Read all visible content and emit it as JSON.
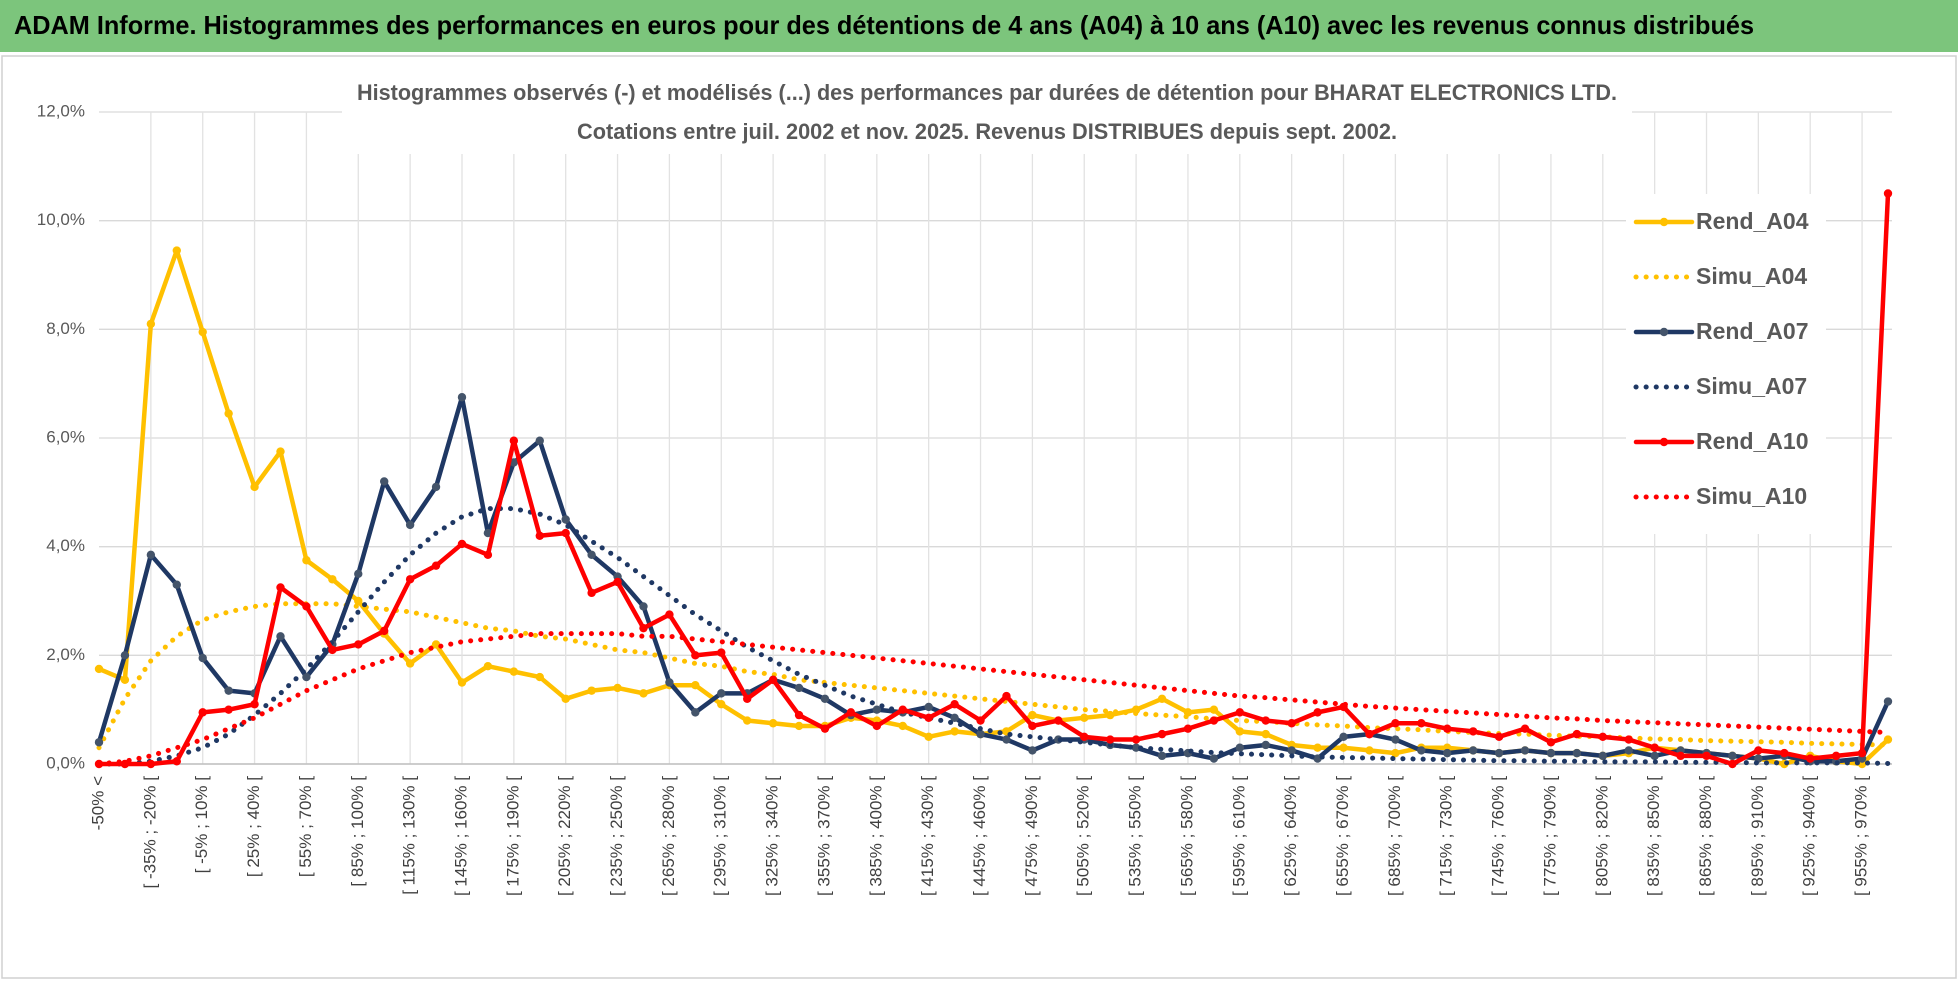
{
  "header": {
    "title": "ADAM Informe. Histogrammes des performances en euros pour des détentions de 4 ans (A04) à 10 ans (A10) avec les revenus connus distribués"
  },
  "chart_data": {
    "type": "line",
    "title": [
      "Histogrammes observés (-) et modélisés (...) des performances par durées de détention pour BHARAT ELECTRONICS LTD.",
      "Cotations entre juil. 2002 et nov. 2025. Revenus DISTRIBUES depuis sept. 2002."
    ],
    "categories": [
      "-50% <",
      null,
      "[ -35% ; -20% [",
      null,
      "[ -5% ; 10% [",
      null,
      "[ 25% ; 40% [",
      null,
      "[ 55% ; 70% [",
      null,
      "[ 85% ; 100% [",
      null,
      "[ 115% ; 130% [",
      null,
      "[ 145% ; 160% [",
      null,
      "[ 175% ; 190% [",
      null,
      "[ 205% ; 220% [",
      null,
      "[ 235% ; 250% [",
      null,
      "[ 265% ; 280% [",
      null,
      "[ 295% ; 310% [",
      null,
      "[ 325% ; 340% [",
      null,
      "[ 355% ; 370% [",
      null,
      "[ 385% ; 400% [",
      null,
      "[ 415% ; 430% [",
      null,
      "[ 445% ; 460% [",
      null,
      "[ 475% ; 490% [",
      null,
      "[ 505% ; 520% [",
      null,
      "[ 535% ; 550% [",
      null,
      "[ 565% ; 580% [",
      null,
      "[ 595% ; 610% [",
      null,
      "[ 625% ; 640% [",
      null,
      "[ 655% ; 670% [",
      null,
      "[ 685% ; 700% [",
      null,
      "[ 715% ; 730% [",
      null,
      "[ 745% ; 760% [",
      null,
      "[ 775% ; 790% [",
      null,
      "[ 805% ; 820% [",
      null,
      "[ 835% ; 850% [",
      null,
      "[ 865% ; 880% [",
      null,
      "[ 895% ; 910% [",
      null,
      "[ 925% ; 940% [",
      null,
      "[ 955% ; 970% [",
      null
    ],
    "ylim": [
      0,
      12
    ],
    "yticks": [
      {
        "value": 0,
        "label": "0,0%"
      },
      {
        "value": 2,
        "label": "2,0%"
      },
      {
        "value": 4,
        "label": "4,0%"
      },
      {
        "value": 6,
        "label": "6,0%"
      },
      {
        "value": 8,
        "label": "8,0%"
      },
      {
        "value": 10,
        "label": "10,0%"
      },
      {
        "value": 12,
        "label": "12,0%"
      }
    ],
    "grid": true,
    "legend": "right",
    "series": [
      {
        "name": "Rend_A04",
        "color": "#ffc000",
        "style": "solid",
        "marker": true,
        "values": [
          1.75,
          1.55,
          8.1,
          9.45,
          7.95,
          6.45,
          5.1,
          5.75,
          3.75,
          3.4,
          3.0,
          2.4,
          1.85,
          2.2,
          1.5,
          1.8,
          1.7,
          1.6,
          1.2,
          1.35,
          1.4,
          1.3,
          1.45,
          1.45,
          1.1,
          0.8,
          0.75,
          0.7,
          0.7,
          0.85,
          0.8,
          0.7,
          0.5,
          0.6,
          0.55,
          0.6,
          0.9,
          0.8,
          0.85,
          0.9,
          1.0,
          1.2,
          0.95,
          1.0,
          0.6,
          0.55,
          0.35,
          0.3,
          0.3,
          0.25,
          0.2,
          0.3,
          0.3,
          0.25,
          0.2,
          0.25,
          0.2,
          0.2,
          0.15,
          0.2,
          0.3,
          0.25,
          0.2,
          0.15,
          0.1,
          0.0,
          0.15,
          0.05,
          0.0,
          0.45
        ]
      },
      {
        "name": "Simu_A04",
        "color": "#ffc000",
        "style": "dotted",
        "marker": false,
        "values": [
          0.3,
          1.2,
          1.9,
          2.35,
          2.65,
          2.8,
          2.9,
          2.95,
          2.95,
          2.95,
          2.9,
          2.85,
          2.8,
          2.7,
          2.6,
          2.5,
          2.45,
          2.35,
          2.3,
          2.2,
          2.1,
          2.05,
          1.95,
          1.85,
          1.8,
          1.7,
          1.65,
          1.55,
          1.5,
          1.45,
          1.4,
          1.35,
          1.3,
          1.25,
          1.2,
          1.15,
          1.1,
          1.05,
          1.0,
          0.97,
          0.93,
          0.9,
          0.87,
          0.83,
          0.8,
          0.78,
          0.75,
          0.72,
          0.7,
          0.67,
          0.65,
          0.63,
          0.6,
          0.58,
          0.56,
          0.55,
          0.53,
          0.51,
          0.5,
          0.48,
          0.46,
          0.45,
          0.43,
          0.42,
          0.41,
          0.4,
          0.38,
          0.37,
          0.36,
          0.35
        ]
      },
      {
        "name": "Rend_A07",
        "color": "#1f3864",
        "style": "solid",
        "marker": true,
        "values": [
          0.4,
          2.0,
          3.85,
          3.3,
          1.95,
          1.35,
          1.3,
          2.35,
          1.6,
          2.2,
          3.5,
          5.2,
          4.4,
          5.1,
          6.75,
          4.25,
          5.55,
          5.95,
          4.5,
          3.85,
          3.45,
          2.9,
          1.5,
          0.95,
          1.3,
          1.3,
          1.55,
          1.4,
          1.2,
          0.9,
          1.0,
          0.95,
          1.05,
          0.85,
          0.55,
          0.45,
          0.25,
          0.45,
          0.45,
          0.35,
          0.3,
          0.15,
          0.2,
          0.1,
          0.3,
          0.35,
          0.25,
          0.1,
          0.5,
          0.55,
          0.45,
          0.25,
          0.2,
          0.25,
          0.2,
          0.25,
          0.2,
          0.2,
          0.15,
          0.25,
          0.15,
          0.25,
          0.2,
          0.15,
          0.1,
          0.15,
          0.05,
          0.05,
          0.1,
          1.15
        ]
      },
      {
        "name": "Simu_A07",
        "color": "#1f3864",
        "style": "dotted",
        "marker": false,
        "values": [
          0.0,
          0.0,
          0.05,
          0.15,
          0.3,
          0.55,
          0.9,
          1.3,
          1.75,
          2.25,
          2.8,
          3.35,
          3.85,
          4.25,
          4.55,
          4.7,
          4.7,
          4.6,
          4.4,
          4.1,
          3.8,
          3.45,
          3.1,
          2.75,
          2.45,
          2.15,
          1.9,
          1.65,
          1.45,
          1.25,
          1.1,
          0.95,
          0.85,
          0.75,
          0.65,
          0.55,
          0.5,
          0.45,
          0.4,
          0.35,
          0.3,
          0.27,
          0.24,
          0.21,
          0.19,
          0.17,
          0.15,
          0.13,
          0.12,
          0.11,
          0.1,
          0.09,
          0.08,
          0.07,
          0.06,
          0.06,
          0.05,
          0.05,
          0.04,
          0.04,
          0.04,
          0.03,
          0.03,
          0.03,
          0.02,
          0.02,
          0.02,
          0.02,
          0.02,
          0.01
        ]
      },
      {
        "name": "Rend_A10",
        "color": "#ff0000",
        "style": "solid",
        "marker": true,
        "values": [
          0.0,
          0.0,
          0.0,
          0.05,
          0.95,
          1.0,
          1.1,
          3.25,
          2.9,
          2.1,
          2.2,
          2.45,
          3.4,
          3.65,
          4.05,
          3.85,
          5.95,
          4.2,
          4.25,
          3.15,
          3.35,
          2.5,
          2.75,
          2.0,
          2.05,
          1.2,
          1.55,
          0.9,
          0.65,
          0.95,
          0.7,
          1.0,
          0.85,
          1.1,
          0.8,
          1.25,
          0.7,
          0.8,
          0.5,
          0.45,
          0.45,
          0.55,
          0.65,
          0.8,
          0.95,
          0.8,
          0.75,
          0.95,
          1.05,
          0.55,
          0.75,
          0.75,
          0.65,
          0.6,
          0.5,
          0.65,
          0.4,
          0.55,
          0.5,
          0.45,
          0.3,
          0.15,
          0.15,
          0.0,
          0.25,
          0.2,
          0.1,
          0.15,
          0.2,
          10.5
        ]
      },
      {
        "name": "Simu_A10",
        "color": "#ff0000",
        "style": "dotted",
        "marker": false,
        "values": [
          0.0,
          0.05,
          0.15,
          0.3,
          0.45,
          0.65,
          0.85,
          1.1,
          1.35,
          1.55,
          1.75,
          1.9,
          2.05,
          2.15,
          2.25,
          2.3,
          2.35,
          2.4,
          2.4,
          2.4,
          2.4,
          2.35,
          2.35,
          2.3,
          2.25,
          2.2,
          2.15,
          2.1,
          2.05,
          2.0,
          1.95,
          1.9,
          1.85,
          1.8,
          1.75,
          1.7,
          1.65,
          1.6,
          1.55,
          1.5,
          1.45,
          1.4,
          1.35,
          1.3,
          1.25,
          1.22,
          1.18,
          1.14,
          1.1,
          1.06,
          1.03,
          1.0,
          0.97,
          0.94,
          0.91,
          0.88,
          0.85,
          0.83,
          0.8,
          0.78,
          0.76,
          0.74,
          0.72,
          0.7,
          0.68,
          0.66,
          0.64,
          0.62,
          0.6,
          0.58
        ]
      }
    ]
  }
}
